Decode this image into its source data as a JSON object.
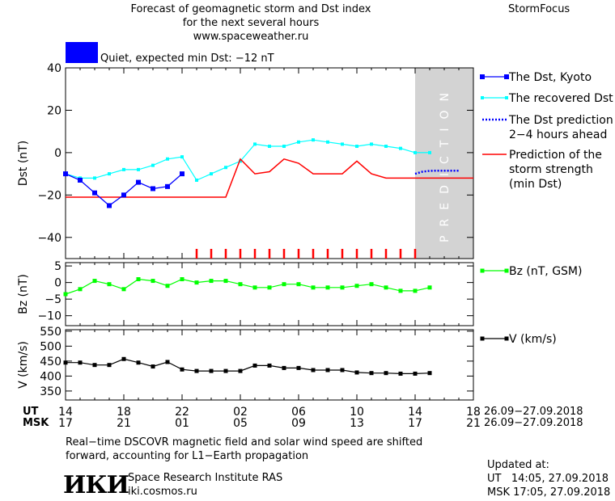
{
  "header": {
    "title_line1": "Forecast of geomagnetic storm and Dst index",
    "title_line2": "for the next several hours",
    "title_line3": "www.spaceweather.ru",
    "brand": "StormFocus",
    "status_text": "Quiet, expected min Dst: −12 nT",
    "status_color": "#0000ff"
  },
  "prediction_label": "PREDICTION",
  "time_axis": {
    "ut_label": "UT",
    "msk_label": "MSK",
    "ut_ticks": [
      "14",
      "18",
      "22",
      "02",
      "06",
      "10",
      "14",
      "18"
    ],
    "msk_ticks": [
      "17",
      "21",
      "01",
      "05",
      "09",
      "13",
      "17",
      "21"
    ],
    "date_range_ut": "26.09−27.09.2018",
    "date_range_msk": "26.09−27.09.2018"
  },
  "footer": {
    "note_line1": "Real−time DSCOVR magnetic field and solar wind speed are shifted",
    "note_line2": "forward, accounting for L1−Earth propagation",
    "logo_text": "ИКИ",
    "institute": "Space Research Institute RAS",
    "site": "iki.cosmos.ru",
    "updated_label": "Updated at:",
    "updated_ut": "UT   14:05, 27.09.2018",
    "updated_msk": "MSK 17:05, 27.09.2018"
  },
  "colors": {
    "dst_kyoto": "#0000ff",
    "recovered": "#00ffff",
    "prediction": "#0000ff",
    "storm_strength": "#ff0000",
    "bz": "#00ff00",
    "v": "#000000",
    "prediction_band": "#d3d3d3",
    "markers": "#ff0000"
  },
  "chart_data": [
    {
      "type": "line",
      "ylabel": "Dst (nT)",
      "ylim": [
        -50,
        40
      ],
      "xlim": [
        0,
        28
      ],
      "yticks": [
        40,
        20,
        0,
        -20,
        -40
      ],
      "prediction_region": [
        24,
        28
      ],
      "series": [
        {
          "name": "The Dst, Kyoto",
          "x": [
            0,
            1,
            2,
            3,
            4,
            5,
            6,
            7,
            8
          ],
          "y": [
            -10,
            -13,
            -19,
            -25,
            -20,
            -14,
            -17,
            -16,
            -10
          ]
        },
        {
          "name": "The recovered Dst",
          "x": [
            0,
            1,
            2,
            3,
            4,
            5,
            6,
            7,
            8,
            9,
            10,
            11,
            12,
            13,
            14,
            15,
            16,
            17,
            18,
            19,
            20,
            21,
            22,
            23,
            24,
            25
          ],
          "y": [
            -10,
            -12,
            -12,
            -10,
            -8,
            -8,
            -6,
            -3,
            -2,
            -13,
            -10,
            -7,
            -4,
            4,
            3,
            3,
            5,
            6,
            5,
            4,
            3,
            4,
            3,
            2,
            0,
            0
          ]
        },
        {
          "name": "The Dst prediction\n2−4 hours ahead",
          "x": [
            24,
            24.5,
            25,
            25.5,
            26,
            26.5,
            27
          ],
          "y": [
            -10,
            -9,
            -8.6,
            -8.5,
            -8.5,
            -8.5,
            -8.5
          ]
        },
        {
          "name": "Prediction of the\nstorm strength\n(min Dst)",
          "x": [
            0,
            11,
            12,
            13,
            14,
            15,
            16,
            17,
            18,
            19,
            20,
            21,
            22,
            23,
            24,
            28
          ],
          "y": [
            -21,
            -21,
            -3,
            -10,
            -9,
            -3,
            -5,
            -10,
            -10,
            -10,
            -4,
            -10,
            -12,
            -12,
            -12,
            -12
          ]
        }
      ],
      "storm_markers_x": [
        9,
        10,
        11,
        12,
        13,
        14,
        15,
        16,
        17,
        18,
        19,
        20,
        21,
        22,
        23,
        24
      ]
    },
    {
      "type": "line",
      "ylabel": "Bz (nT)",
      "ylim": [
        -13,
        6
      ],
      "xlim": [
        0,
        28
      ],
      "yticks": [
        5,
        0,
        -5,
        -10
      ],
      "series": [
        {
          "name": "Bz (nT, GSM)",
          "x": [
            0,
            1,
            2,
            3,
            4,
            5,
            6,
            7,
            8,
            9,
            10,
            11,
            12,
            13,
            14,
            15,
            16,
            17,
            18,
            19,
            20,
            21,
            22,
            23,
            24,
            25
          ],
          "y": [
            -3.5,
            -2,
            0.5,
            -0.5,
            -2,
            1,
            0.5,
            -1,
            1,
            0,
            0.5,
            0.5,
            -0.5,
            -1.5,
            -1.5,
            -0.5,
            -0.5,
            -1.5,
            -1.5,
            -1.5,
            -1,
            -0.5,
            -1.5,
            -2.5,
            -2.5,
            -1.5
          ]
        }
      ]
    },
    {
      "type": "line",
      "ylabel": "V (km/s)",
      "ylim": [
        320,
        555
      ],
      "xlim": [
        0,
        28
      ],
      "yticks": [
        550,
        500,
        450,
        400,
        350
      ],
      "series": [
        {
          "name": "V (km/s)",
          "x": [
            0,
            1,
            2,
            3,
            4,
            5,
            6,
            7,
            8,
            9,
            10,
            11,
            12,
            13,
            14,
            15,
            16,
            17,
            18,
            19,
            20,
            21,
            22,
            23,
            24,
            25
          ],
          "y": [
            445,
            445,
            437,
            437,
            457,
            445,
            432,
            447,
            422,
            417,
            417,
            417,
            417,
            435,
            435,
            427,
            427,
            420,
            420,
            420,
            412,
            410,
            410,
            408,
            408,
            410
          ]
        }
      ]
    }
  ]
}
